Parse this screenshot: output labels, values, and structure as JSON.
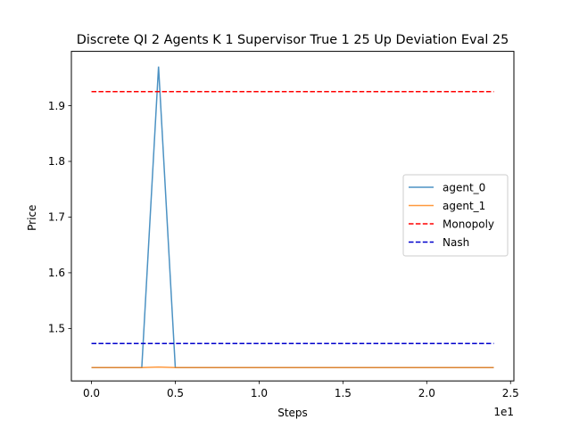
{
  "chart_data": {
    "type": "line",
    "title": "Discrete QI 2 Agents K 1 Supervisor True 1 25 Up Deviation Eval 25",
    "xlabel": "Steps",
    "ylabel": "Price",
    "x_offset_label": "1e1",
    "xlim": [
      -0.12,
      2.52
    ],
    "ylim": [
      1.4058,
      1.9976
    ],
    "x_ticks": [
      0,
      0.5,
      1.0,
      1.5,
      2.0,
      2.5
    ],
    "x_tick_labels": [
      "0.0",
      "0.5",
      "1.0",
      "1.5",
      "2.0",
      "2.5"
    ],
    "y_ticks": [
      1.5,
      1.6,
      1.7,
      1.8,
      1.9
    ],
    "y_tick_labels": [
      "1.5",
      "1.6",
      "1.7",
      "1.8",
      "1.9"
    ],
    "grid": false,
    "legend_position": "center-right",
    "series": [
      {
        "name": "agent_0",
        "color": "#1f77b4",
        "style": "solid",
        "x": [
          0,
          0.3,
          0.4,
          0.5,
          2.4
        ],
        "y": [
          1.4297,
          1.4297,
          1.9703,
          1.4297,
          1.4297
        ]
      },
      {
        "name": "agent_1",
        "color": "#ff7f0e",
        "style": "solid",
        "x": [
          0,
          0.3,
          0.4,
          0.5,
          2.4
        ],
        "y": [
          1.4297,
          1.4297,
          1.4307,
          1.4297,
          1.4297
        ]
      },
      {
        "name": "Monopoly",
        "color": "#ff0000",
        "style": "dashed",
        "x": [
          0,
          2.4
        ],
        "y": [
          1.9253,
          1.9253
        ]
      },
      {
        "name": "Nash",
        "color": "#0000cc",
        "style": "dashed",
        "x": [
          0,
          2.4
        ],
        "y": [
          1.4729,
          1.4729
        ]
      }
    ]
  }
}
